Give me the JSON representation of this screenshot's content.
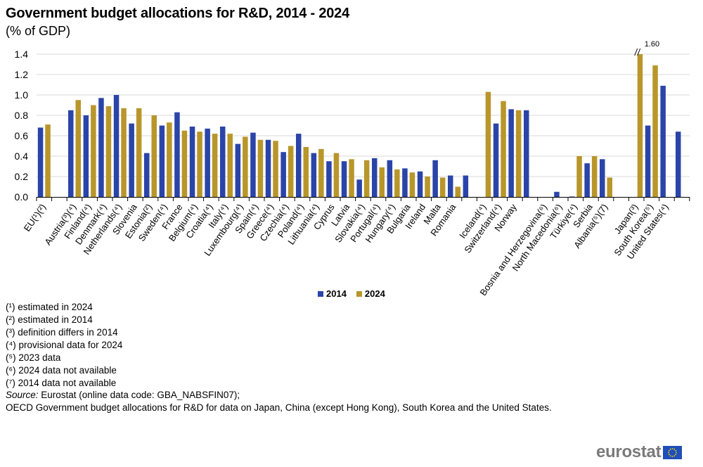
{
  "header": {
    "title": "Government budget allocations for R&D, 2014 - 2024",
    "subtitle": "(% of GDP)"
  },
  "colors": {
    "series_2014": "#2a44a8",
    "series_2024": "#b8962a",
    "grid": "#d9d9d9",
    "axis": "#000000"
  },
  "chart_data": {
    "type": "bar",
    "title": "Government budget allocations for R&D, 2014 - 2024",
    "subtitle": "(% of GDP)",
    "xlabel": "",
    "ylabel": "",
    "ylim": [
      0,
      1.4
    ],
    "yticks": [
      "0.0",
      "0.2",
      "0.4",
      "0.6",
      "0.8",
      "1.0",
      "1.2",
      "1.4"
    ],
    "grid": true,
    "legend_position": "bottom-center",
    "categories": [
      "EU(¹)(²)",
      "",
      "Austria(³)(⁴)",
      "Finland(⁴)",
      "Denmark(⁴)",
      "Netherlands(⁴)",
      "Slovenia",
      "Estonia(²)",
      "Sweden(⁴)",
      "France",
      "Belgium(⁴)",
      "Croatia(⁴)",
      "Italy(⁴)",
      "Luxembourg(⁴)",
      "Spain(⁴)",
      "Greece(⁴)",
      "Czechia(⁴)",
      "Poland(⁴)",
      "Lithuania(⁴)",
      "Cyprus",
      "Latvia",
      "Slovakia(⁴)",
      "Portugal(⁴)",
      "Hungary(⁴)",
      "Bulgaria",
      "Ireland",
      "Malta",
      "Romania",
      "",
      "Iceland(⁴)",
      "Switzerland(⁴)",
      "Norway",
      "",
      "Bosnia and Herzegovina(⁶)",
      "North Macedonia(⁶)",
      "Türkiye(⁴)",
      "Serbia",
      "Albania(⁵)(7)",
      "",
      "Japan(³)",
      "South Korea(⁵)",
      "United States(⁴)",
      ""
    ],
    "series": [
      {
        "name": "2014",
        "values": [
          0.68,
          null,
          0.85,
          0.8,
          0.97,
          1.0,
          0.72,
          0.43,
          0.7,
          0.83,
          0.69,
          0.67,
          0.69,
          0.52,
          0.63,
          0.56,
          0.44,
          0.62,
          0.43,
          0.35,
          0.35,
          0.17,
          0.38,
          0.36,
          0.28,
          0.25,
          0.36,
          0.21,
          0.21,
          null,
          0.72,
          0.86,
          0.85,
          null,
          0.05,
          0.0,
          0.33,
          0.37,
          null,
          null,
          0.7,
          1.09,
          0.64
        ]
      },
      {
        "name": "2024",
        "values": [
          0.71,
          null,
          0.95,
          0.9,
          0.89,
          0.87,
          0.87,
          0.8,
          0.73,
          0.65,
          0.64,
          0.62,
          0.62,
          0.59,
          0.56,
          0.55,
          0.5,
          0.49,
          0.47,
          0.43,
          0.37,
          0.36,
          0.29,
          0.27,
          0.24,
          0.2,
          0.19,
          0.1,
          null,
          1.03,
          0.94,
          0.85,
          null,
          null,
          null,
          0.4,
          0.4,
          0.19,
          null,
          1.6,
          1.29,
          null,
          null
        ]
      }
    ],
    "annotations": [
      {
        "category": "Japan(³)",
        "series": "2024",
        "text": "1.60",
        "note": "bar truncated at axis max (break marker //)"
      }
    ]
  },
  "legend": {
    "items": [
      {
        "label": "2014",
        "color": "#2a44a8"
      },
      {
        "label": "2024",
        "color": "#b8962a"
      }
    ]
  },
  "notes": [
    "(¹) estimated in 2024",
    "(²) estimated in 2014",
    "(³) definition differs in 2014",
    "(⁴) provisional data for 2024",
    "(⁵) 2023 data",
    "(⁶) 2024 data not available",
    "(⁷) 2014 data not available"
  ],
  "source": {
    "label": "Source:",
    "line1": " Eurostat (online data code: GBA_NABSFIN07);",
    "line2": "OECD Government budget allocations for R&D for data on Japan, China (except Hong Kong), South Korea and the United States."
  },
  "logo": {
    "text": "eurostat"
  }
}
